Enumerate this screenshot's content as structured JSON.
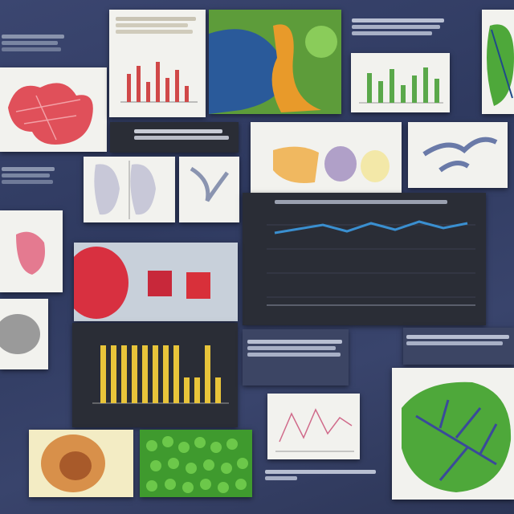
{
  "colors": {
    "background": "#344068",
    "tissue_red": "#e0505a",
    "leaf_green": "#4ea83a",
    "accent_blue": "#3a8fd0",
    "bar_yellow": "#e8c43a"
  },
  "panels": {
    "top_left_heart": "heart-tissue-illustration",
    "top_chart": "red-bar-chart-document",
    "top_photo": "blue-orange-micrograph",
    "top_right_chart": "green-bar-chart-document",
    "leaf_top_right": "green-leaf-illustration",
    "organ_row": "organ-illustrations",
    "line_chart": "blue-line-chart",
    "red_tissue": "red-tissue-micrograph",
    "yellow_bars": "yellow-bar-chart",
    "small_line_chart": "pink-line-chart",
    "large_leaf": "green-leaf-venation",
    "bottom_left_organ": "orange-tissue-illustration",
    "green_cells": "green-cell-mosaic"
  }
}
